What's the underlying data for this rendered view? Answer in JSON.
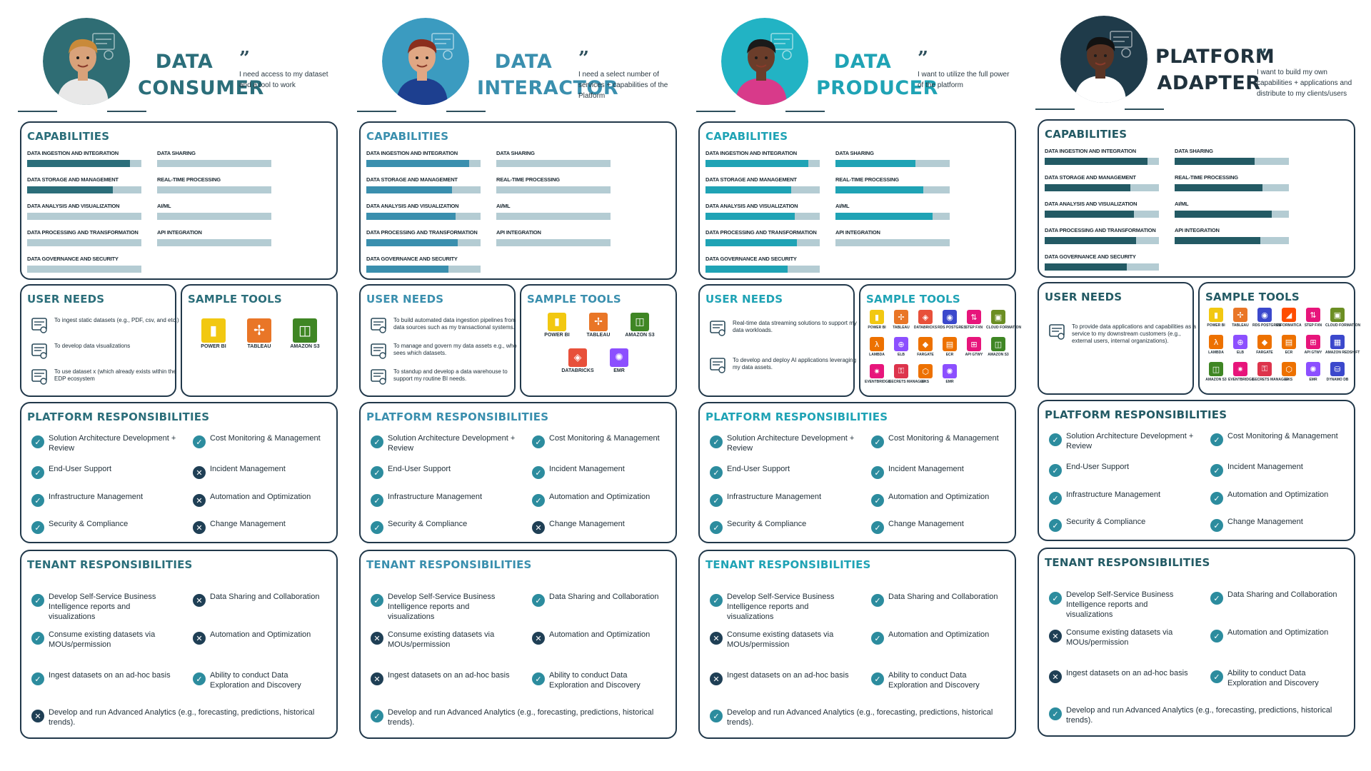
{
  "personas": [
    {
      "id": "consumer",
      "role_line1": "DATA",
      "role_line2": "CONSUMER",
      "quote": "I need access to my dataset and a tool to work",
      "accent": "#2b6e7a",
      "avatar_bg": "#2f6d74",
      "capabilities_title": "CAPABILITIES",
      "capabilities": [
        {
          "label": "DATA INGESTION AND INTEGRATION",
          "level": 0.9
        },
        {
          "label": "DATA STORAGE AND MANAGEMENT",
          "level": 0.75
        },
        {
          "label": "DATA ANALYSIS AND VISUALIZATION",
          "level": 0.0
        },
        {
          "label": "DATA PROCESSING AND TRANSFORMATION",
          "level": 0.0
        },
        {
          "label": "DATA GOVERNANCE AND SECURITY",
          "level": 0.0
        },
        {
          "label": "DATA SHARING",
          "level": 0.0
        },
        {
          "label": "REAL-TIME PROCESSING",
          "level": 0.0
        },
        {
          "label": "AI/ML",
          "level": 0.0
        },
        {
          "label": "API INTEGRATION",
          "level": 0.0
        }
      ],
      "user_needs_title": "USER NEEDS",
      "user_needs": [
        {
          "icon": "dataset-ingest-icon",
          "text": "To ingest static datasets (e.g., PDF, csv, and etc.)"
        },
        {
          "icon": "visualization-icon",
          "text": "To develop data visualizations"
        },
        {
          "icon": "database-icon",
          "text": "To use dataset x (which already exists within the EDP ecosystem"
        }
      ],
      "sample_tools_title": "SAMPLE TOOLS",
      "tools": [
        {
          "name": "POWER BI",
          "icon": "power-bi-icon"
        },
        {
          "name": "TABLEAU",
          "icon": "tableau-icon"
        },
        {
          "name": "AMAZON S3",
          "icon": "amazon-s3-icon"
        }
      ],
      "platform_title": "PLATFORM RESPONSIBILITIES",
      "platform": [
        {
          "text": "Solution Architecture Development + Review",
          "status": "check"
        },
        {
          "text": "End-User Support",
          "status": "check"
        },
        {
          "text": "Infrastructure Management",
          "status": "check"
        },
        {
          "text": "Security & Compliance",
          "status": "check"
        },
        {
          "text": "Cost Monitoring & Management",
          "status": "check"
        },
        {
          "text": "Incident Management",
          "status": "cross"
        },
        {
          "text": "Automation and Optimization",
          "status": "cross"
        },
        {
          "text": "Change Management",
          "status": "cross"
        }
      ],
      "tenant_title": "TENANT RESPONSIBILITIES",
      "tenant": [
        {
          "text": "Develop Self-Service Business Intelligence reports and visualizations",
          "status": "check"
        },
        {
          "text": "Consume existing datasets via MOUs/permission",
          "status": "check"
        },
        {
          "text": "Ingest datasets on an ad-hoc basis",
          "status": "check"
        },
        {
          "text": "Data Sharing and Collaboration",
          "status": "cross"
        },
        {
          "text": "Automation and Optimization",
          "status": "cross"
        },
        {
          "text": "Ability to conduct Data Exploration and Discovery",
          "status": "check"
        },
        {
          "text": "Develop and run Advanced Analytics (e.g., forecasting, predictions, historical trends).",
          "status": "cross"
        }
      ]
    },
    {
      "id": "interactor",
      "role_line1": "DATA",
      "role_line2": "INTERACTOR",
      "quote": "I need a select number of services + capabilities of the Platform",
      "accent": "#3a8fae",
      "avatar_bg": "#3b9bc0",
      "capabilities_title": "CAPABILITIES",
      "capabilities": [
        {
          "label": "DATA INGESTION AND INTEGRATION",
          "level": 0.9
        },
        {
          "label": "DATA STORAGE AND MANAGEMENT",
          "level": 0.75
        },
        {
          "label": "DATA ANALYSIS AND VISUALIZATION",
          "level": 0.78
        },
        {
          "label": "DATA PROCESSING AND TRANSFORMATION",
          "level": 0.8
        },
        {
          "label": "DATA GOVERNANCE AND SECURITY",
          "level": 0.72
        },
        {
          "label": "DATA SHARING",
          "level": 0.0
        },
        {
          "label": "REAL-TIME PROCESSING",
          "level": 0.0
        },
        {
          "label": "AI/ML",
          "level": 0.0
        },
        {
          "label": "API INTEGRATION",
          "level": 0.0
        }
      ],
      "user_needs_title": "USER NEEDS",
      "user_needs": [
        {
          "icon": "pipeline-icon",
          "text": "To build automated data ingestion pipelines from data sources such as my transactional systems."
        },
        {
          "icon": "magnifier-icon",
          "text": "To manage and govern my data assets e.g., who sees which datasets."
        },
        {
          "icon": "warehouse-icon",
          "text": "To standup and develop a data warehouse to support my routine BI needs."
        }
      ],
      "sample_tools_title": "SAMPLE TOOLS",
      "tools": [
        {
          "name": "POWER BI",
          "icon": "power-bi-icon"
        },
        {
          "name": "TABLEAU",
          "icon": "tableau-icon"
        },
        {
          "name": "AMAZON S3",
          "icon": "amazon-s3-icon"
        },
        {
          "name": "DATABRICKS",
          "icon": "databricks-icon"
        },
        {
          "name": "EMR",
          "icon": "emr-icon"
        }
      ],
      "platform_title": "PLATFORM RESPONSIBILITIES",
      "platform": [
        {
          "text": "Solution Architecture Development + Review",
          "status": "check"
        },
        {
          "text": "End-User Support",
          "status": "check"
        },
        {
          "text": "Infrastructure Management",
          "status": "check"
        },
        {
          "text": "Security & Compliance",
          "status": "check"
        },
        {
          "text": "Cost Monitoring & Management",
          "status": "check"
        },
        {
          "text": "Incident Management",
          "status": "check"
        },
        {
          "text": "Automation and Optimization",
          "status": "check"
        },
        {
          "text": "Change Management",
          "status": "cross"
        }
      ],
      "tenant_title": "TENANT RESPONSIBILITIES",
      "tenant": [
        {
          "text": "Develop Self-Service Business Intelligence reports and visualizations",
          "status": "check"
        },
        {
          "text": "Consume existing datasets via MOUs/permission",
          "status": "cross"
        },
        {
          "text": "Ingest datasets on an ad-hoc basis",
          "status": "cross"
        },
        {
          "text": "Data Sharing and Collaboration",
          "status": "check"
        },
        {
          "text": "Automation and Optimization",
          "status": "cross"
        },
        {
          "text": "Ability to conduct Data Exploration and Discovery",
          "status": "check"
        },
        {
          "text": "Develop and run Advanced Analytics (e.g., forecasting, predictions, historical trends).",
          "status": "check"
        }
      ]
    },
    {
      "id": "producer",
      "role_line1": "DATA",
      "role_line2": "PRODUCER",
      "quote": "I want to utilize the full power of the platform",
      "accent": "#1fa3b5",
      "avatar_bg": "#22b3c4",
      "capabilities_title": "CAPABILITIES",
      "capabilities": [
        {
          "label": "DATA INGESTION AND INTEGRATION",
          "level": 0.9
        },
        {
          "label": "DATA STORAGE AND MANAGEMENT",
          "level": 0.75
        },
        {
          "label": "DATA ANALYSIS AND VISUALIZATION",
          "level": 0.78
        },
        {
          "label": "DATA PROCESSING AND TRANSFORMATION",
          "level": 0.8
        },
        {
          "label": "DATA GOVERNANCE AND SECURITY",
          "level": 0.72
        },
        {
          "label": "DATA SHARING",
          "level": 0.7
        },
        {
          "label": "REAL-TIME PROCESSING",
          "level": 0.77
        },
        {
          "label": "AI/ML",
          "level": 0.85
        },
        {
          "label": "API INTEGRATION",
          "level": 0.0
        }
      ],
      "user_needs_title": "USER NEEDS",
      "user_needs": [
        {
          "icon": "streaming-icon",
          "text": "Real-time data streaming solutions to support my data workloads."
        },
        {
          "icon": "ai-gear-icon",
          "text": "To develop and deploy AI applications leveraging my data assets."
        }
      ],
      "sample_tools_title": "SAMPLE TOOLS",
      "tools": [
        {
          "name": "POWER BI",
          "icon": "power-bi-icon"
        },
        {
          "name": "TABLEAU",
          "icon": "tableau-icon"
        },
        {
          "name": "DATABRICKS",
          "icon": "databricks-icon"
        },
        {
          "name": "RDS POSTGRES",
          "icon": "rds-postgres-icon"
        },
        {
          "name": "STEP FXN",
          "icon": "step-functions-icon"
        },
        {
          "name": "CLOUD FORMATION",
          "icon": "cloudformation-icon"
        },
        {
          "name": "LAMBDA",
          "icon": "lambda-icon"
        },
        {
          "name": "ELB",
          "icon": "elb-icon"
        },
        {
          "name": "FARGATE",
          "icon": "fargate-icon"
        },
        {
          "name": "ECR",
          "icon": "ecr-icon"
        },
        {
          "name": "API GTWY",
          "icon": "api-gateway-icon"
        },
        {
          "name": "AMAZON S3",
          "icon": "amazon-s3-icon"
        },
        {
          "name": "EVENTBRIDGE",
          "icon": "eventbridge-icon"
        },
        {
          "name": "SECRETS MANAGER",
          "icon": "secrets-manager-icon"
        },
        {
          "name": "EKS",
          "icon": "eks-icon"
        },
        {
          "name": "EMR",
          "icon": "emr-icon"
        }
      ],
      "platform_title": "PLATFORM RESPONSIBILITIES",
      "platform": [
        {
          "text": "Solution Architecture Development + Review",
          "status": "check"
        },
        {
          "text": "End-User Support",
          "status": "check"
        },
        {
          "text": "Infrastructure Management",
          "status": "check"
        },
        {
          "text": "Security & Compliance",
          "status": "check"
        },
        {
          "text": "Cost Monitoring & Management",
          "status": "check"
        },
        {
          "text": "Incident Management",
          "status": "check"
        },
        {
          "text": "Automation and Optimization",
          "status": "check"
        },
        {
          "text": "Change Management",
          "status": "check"
        }
      ],
      "tenant_title": "TENANT RESPONSIBILITIES",
      "tenant": [
        {
          "text": "Develop Self-Service Business Intelligence reports and visualizations",
          "status": "check"
        },
        {
          "text": "Consume existing datasets via MOUs/permission",
          "status": "cross"
        },
        {
          "text": "Ingest datasets on an ad-hoc basis",
          "status": "cross"
        },
        {
          "text": "Data Sharing and Collaboration",
          "status": "check"
        },
        {
          "text": "Automation and Optimization",
          "status": "check"
        },
        {
          "text": "Ability to conduct Data Exploration and Discovery",
          "status": "check"
        },
        {
          "text": "Develop and run Advanced Analytics (e.g., forecasting, predictions, historical trends).",
          "status": "check"
        }
      ]
    },
    {
      "id": "adapter",
      "role_line1": "PLATFORM",
      "role_line2": "ADAPTER",
      "quote": "I want to build my own capabilities + applications and distribute to my clients/users",
      "accent": "#235a64",
      "avatar_bg": "#1f3b4a",
      "capabilities_title": "CAPABILITIES",
      "capabilities": [
        {
          "label": "DATA INGESTION AND INTEGRATION",
          "level": 0.9
        },
        {
          "label": "DATA STORAGE AND MANAGEMENT",
          "level": 0.75
        },
        {
          "label": "DATA ANALYSIS AND VISUALIZATION",
          "level": 0.78
        },
        {
          "label": "DATA PROCESSING AND TRANSFORMATION",
          "level": 0.8
        },
        {
          "label": "DATA GOVERNANCE AND SECURITY",
          "level": 0.72
        },
        {
          "label": "DATA SHARING",
          "level": 0.7
        },
        {
          "label": "REAL-TIME PROCESSING",
          "level": 0.77
        },
        {
          "label": "AI/ML",
          "level": 0.85
        },
        {
          "label": "API INTEGRATION",
          "level": 0.75
        }
      ],
      "user_needs_title": "USER NEEDS",
      "user_needs": [
        {
          "icon": "users-app-icon",
          "text": "To provide data applications and capabilities as a service to my downstream customers (e.g., external users, internal organizations)."
        }
      ],
      "sample_tools_title": "SAMPLE TOOLS",
      "tools": [
        {
          "name": "POWER BI",
          "icon": "power-bi-icon"
        },
        {
          "name": "TABLEAU",
          "icon": "tableau-icon"
        },
        {
          "name": "RDS POSTGRES",
          "icon": "rds-postgres-icon"
        },
        {
          "name": "INFORMATICA",
          "icon": "informatica-icon"
        },
        {
          "name": "STEP FXN",
          "icon": "step-functions-icon"
        },
        {
          "name": "CLOUD FORMATION",
          "icon": "cloudformation-icon"
        },
        {
          "name": "LAMBDA",
          "icon": "lambda-icon"
        },
        {
          "name": "ELB",
          "icon": "elb-icon"
        },
        {
          "name": "FARGATE",
          "icon": "fargate-icon"
        },
        {
          "name": "ECR",
          "icon": "ecr-icon"
        },
        {
          "name": "API GTWY",
          "icon": "api-gateway-icon"
        },
        {
          "name": "AMAZON REDSHIFT",
          "icon": "redshift-icon"
        },
        {
          "name": "AMAZON S3",
          "icon": "amazon-s3-icon"
        },
        {
          "name": "EVENTBRIDGE",
          "icon": "eventbridge-icon"
        },
        {
          "name": "SECRETS MANAGER",
          "icon": "secrets-manager-icon"
        },
        {
          "name": "EKS",
          "icon": "eks-icon"
        },
        {
          "name": "EMR",
          "icon": "emr-icon"
        },
        {
          "name": "DYNAMO DB",
          "icon": "dynamodb-icon"
        }
      ],
      "platform_title": "PLATFORM RESPONSIBILITIES",
      "platform": [
        {
          "text": "Solution Architecture Development + Review",
          "status": "check"
        },
        {
          "text": "End-User Support",
          "status": "check"
        },
        {
          "text": "Infrastructure Management",
          "status": "check"
        },
        {
          "text": "Security & Compliance",
          "status": "check"
        },
        {
          "text": "Cost Monitoring & Management",
          "status": "check"
        },
        {
          "text": "Incident Management",
          "status": "check"
        },
        {
          "text": "Automation and Optimization",
          "status": "check"
        },
        {
          "text": "Change Management",
          "status": "check"
        }
      ],
      "tenant_title": "TENANT RESPONSIBILITIES",
      "tenant": [
        {
          "text": "Develop Self-Service Business Intelligence reports and visualizations",
          "status": "check"
        },
        {
          "text": "Consume existing datasets via MOUs/permission",
          "status": "cross"
        },
        {
          "text": "Ingest datasets on an ad-hoc basis",
          "status": "cross"
        },
        {
          "text": "Data Sharing and Collaboration",
          "status": "check"
        },
        {
          "text": "Automation and Optimization",
          "status": "check"
        },
        {
          "text": "Ability to conduct Data Exploration and Discovery",
          "status": "check"
        },
        {
          "text": "Develop and run Advanced Analytics (e.g., forecasting, predictions, historical trends).",
          "status": "check"
        }
      ]
    }
  ]
}
